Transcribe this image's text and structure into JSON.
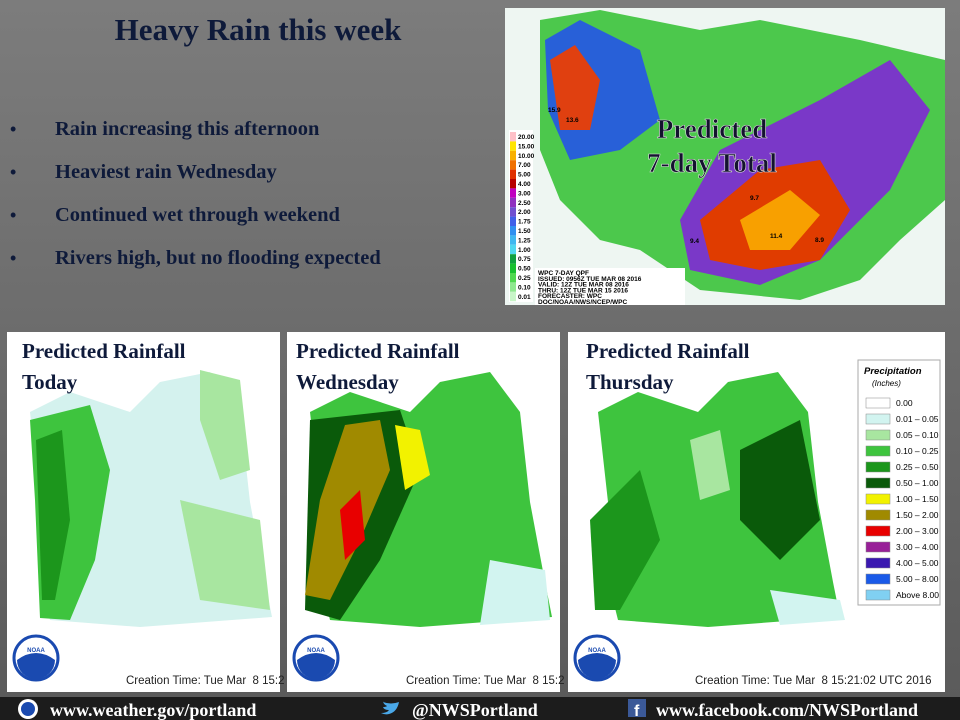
{
  "title": "Heavy Rain this week",
  "bullets": [
    "Rain increasing this afternoon",
    "Heaviest rain Wednesday",
    "Continued wet through weekend",
    "Rivers high, but no flooding expected"
  ],
  "overview_map": {
    "label_lines": [
      "Predicted",
      "7-day Total"
    ],
    "amounts": [
      "15.9",
      "13.6",
      "9.7",
      "11.4",
      "9.4",
      "8.9"
    ],
    "legend": [
      {
        "label": "20.00",
        "color": "#ffc0c8"
      },
      {
        "label": "15.00",
        "color": "#ffe400"
      },
      {
        "label": "10.00",
        "color": "#f8b000"
      },
      {
        "label": "7.00",
        "color": "#f07000"
      },
      {
        "label": "5.00",
        "color": "#e03000"
      },
      {
        "label": "4.00",
        "color": "#b80000"
      },
      {
        "label": "3.00",
        "color": "#c000c0"
      },
      {
        "label": "2.50",
        "color": "#9030c0"
      },
      {
        "label": "2.00",
        "color": "#7050d0"
      },
      {
        "label": "1.75",
        "color": "#4060e8"
      },
      {
        "label": "1.50",
        "color": "#3090f0"
      },
      {
        "label": "1.25",
        "color": "#40b8f0"
      },
      {
        "label": "1.00",
        "color": "#50d8f0"
      },
      {
        "label": "0.75",
        "color": "#10a040"
      },
      {
        "label": "0.50",
        "color": "#18c030"
      },
      {
        "label": "0.25",
        "color": "#50d850"
      },
      {
        "label": "0.10",
        "color": "#90e890"
      },
      {
        "label": "0.01",
        "color": "#c8f5c8"
      }
    ],
    "info": [
      "WPC 7-DAY QPF",
      "ISSUED: 0956Z TUE MAR 08 2016",
      "VALID: 12Z TUE MAR 08 2016",
      "THRU: 12Z TUE MAR 15 2016",
      "FORECASTER: WPC",
      "DOC/NOAA/NWS/NCEP/WPC"
    ]
  },
  "panels": [
    {
      "title_lines": [
        "Predicted Rainfall",
        "Today"
      ],
      "creation": "Creation Time: Tue Mar  8 15:2"
    },
    {
      "title_lines": [
        "Predicted Rainfall",
        "Wednesday"
      ],
      "creation": "Creation Time: Tue Mar  8 15:2"
    },
    {
      "title_lines": [
        "Predicted Rainfall",
        "Thursday"
      ],
      "creation": "Creation Time: Tue Mar  8 15:21:02 UTC 2016"
    }
  ],
  "precip_legend": {
    "title": "Precipitation",
    "units": "(Inches)",
    "items": [
      {
        "label": "0.00",
        "color": "#ffffff"
      },
      {
        "label": "0.01 – 0.05",
        "color": "#d2f4f0"
      },
      {
        "label": "0.05 – 0.10",
        "color": "#a8e6a0"
      },
      {
        "label": "0.10 – 0.25",
        "color": "#3ec43e"
      },
      {
        "label": "0.25 – 0.50",
        "color": "#1c961c"
      },
      {
        "label": "0.50 – 1.00",
        "color": "#0a5a0a"
      },
      {
        "label": "1.00 – 1.50",
        "color": "#f2f200"
      },
      {
        "label": "1.50 – 2.00",
        "color": "#a08a00"
      },
      {
        "label": "2.00 – 3.00",
        "color": "#e80000"
      },
      {
        "label": "3.00 – 4.00",
        "color": "#982098"
      },
      {
        "label": "4.00 – 5.00",
        "color": "#3a18b0"
      },
      {
        "label": "5.00 – 8.00",
        "color": "#1a5ae8"
      },
      {
        "label": "Above 8.00",
        "color": "#80d0f2"
      }
    ]
  },
  "logo": "NOAA",
  "footer": {
    "website": "www.weather.gov/portland",
    "twitter": "@NWSPortland",
    "facebook": "www.facebook.com/NWSPortland"
  }
}
